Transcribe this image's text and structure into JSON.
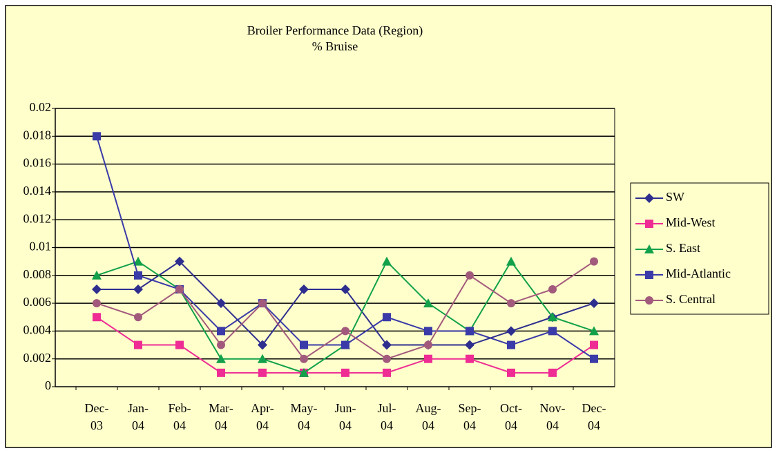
{
  "chart_data": {
    "type": "line",
    "title": "Broiler Performance Data (Region)",
    "subtitle": "% Bruise",
    "categories": [
      "Dec-03",
      "Jan-04",
      "Feb-04",
      "Mar-04",
      "Apr-04",
      "May-04",
      "Jun-04",
      "Jul-04",
      "Aug-04",
      "Sep-04",
      "Oct-04",
      "Nov-04",
      "Dec-04"
    ],
    "series": [
      {
        "name": "SW",
        "color": "#2e2e8f",
        "marker": "diamond",
        "values": [
          0.007,
          0.007,
          0.009,
          0.006,
          0.003,
          0.007,
          0.007,
          0.003,
          0.003,
          0.003,
          0.004,
          0.005,
          0.006
        ]
      },
      {
        "name": "Mid-West",
        "color": "#ee2c94",
        "marker": "square",
        "values": [
          0.005,
          0.003,
          0.003,
          0.001,
          0.001,
          0.001,
          0.001,
          0.001,
          0.002,
          0.002,
          0.001,
          0.001,
          0.003
        ]
      },
      {
        "name": "S. East",
        "color": "#12a14a",
        "marker": "triangle",
        "values": [
          0.008,
          0.009,
          0.007,
          0.002,
          0.002,
          0.001,
          0.003,
          0.009,
          0.006,
          0.004,
          0.009,
          0.005,
          0.004
        ]
      },
      {
        "name": "Mid-Atlantic",
        "color": "#3a3aa8",
        "marker": "square",
        "values": [
          0.018,
          0.008,
          0.007,
          0.004,
          0.006,
          0.003,
          0.003,
          0.005,
          0.004,
          0.004,
          0.003,
          0.004,
          0.002
        ]
      },
      {
        "name": "S. Central",
        "color": "#a25a7c",
        "marker": "circle",
        "values": [
          0.006,
          0.005,
          0.007,
          0.003,
          0.006,
          0.002,
          0.004,
          0.002,
          0.003,
          0.008,
          0.006,
          0.007,
          0.009
        ]
      }
    ],
    "ylim": [
      0,
      0.02
    ],
    "yticks": [
      0,
      0.002,
      0.004,
      0.006,
      0.008,
      0.01,
      0.012,
      0.014,
      0.016,
      0.018,
      0.02
    ],
    "grid": true,
    "legend": "right"
  }
}
